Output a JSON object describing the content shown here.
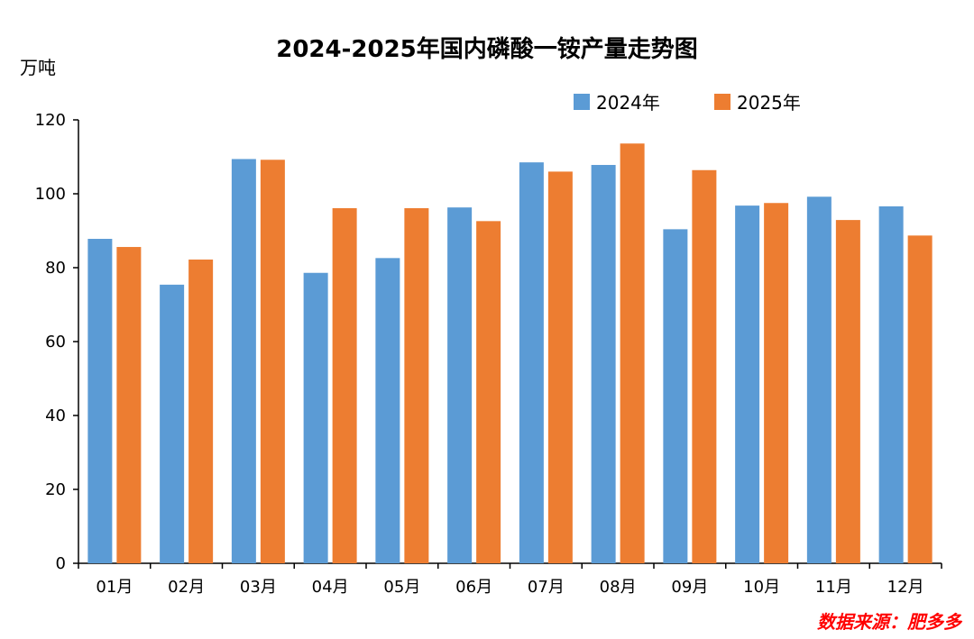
{
  "chart_data": {
    "type": "bar",
    "title": "2024-2025年国内磷酸一铵产量走势图",
    "ylabel": "万吨",
    "xlabel": "",
    "ylim": [
      0,
      120
    ],
    "yticks": [
      0,
      20,
      40,
      60,
      80,
      100,
      120
    ],
    "categories": [
      "01月",
      "02月",
      "03月",
      "04月",
      "05月",
      "06月",
      "07月",
      "08月",
      "09月",
      "10月",
      "11月",
      "12月"
    ],
    "series": [
      {
        "name": "2024年",
        "color": "#5b9bd5",
        "values": [
          87.8,
          75.4,
          109.4,
          78.6,
          82.6,
          96.3,
          108.5,
          107.8,
          90.4,
          96.8,
          99.2,
          96.6
        ]
      },
      {
        "name": "2025年",
        "color": "#ed7d31",
        "values": [
          85.6,
          82.2,
          109.2,
          96.1,
          96.1,
          92.6,
          106.0,
          113.6,
          106.4,
          97.5,
          92.9,
          88.7
        ]
      }
    ],
    "legend": "top-right",
    "grid": false,
    "source_text": "数据来源：肥多多",
    "source_color": "#ff0000"
  }
}
